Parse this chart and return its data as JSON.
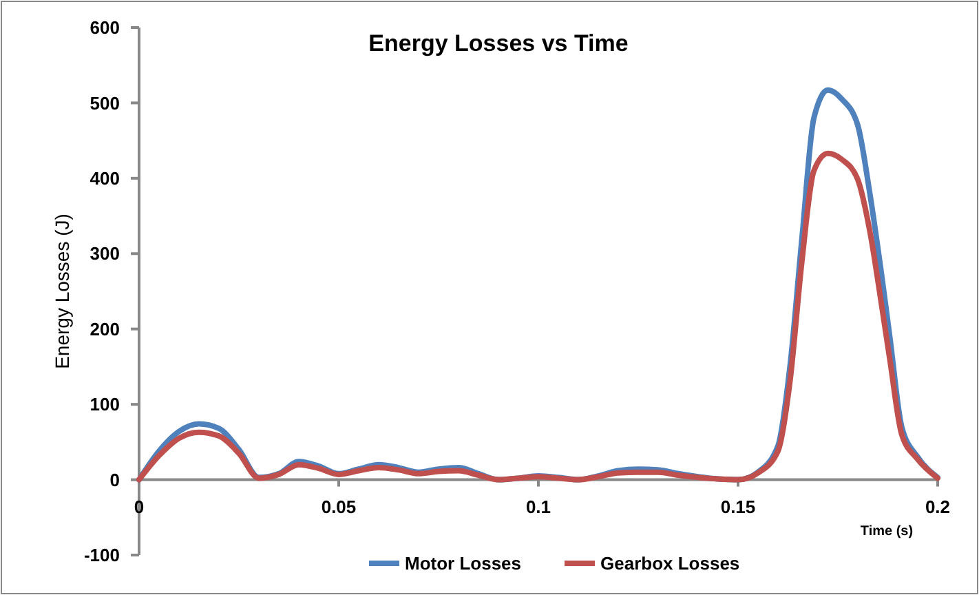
{
  "chart_data": {
    "type": "line",
    "title": "Energy Losses vs Time",
    "xlabel": "Time (s)",
    "ylabel": "Energy Losses (J)",
    "x": [
      0,
      0.005,
      0.01,
      0.015,
      0.02,
      0.025,
      0.03,
      0.035,
      0.04,
      0.045,
      0.05,
      0.055,
      0.06,
      0.065,
      0.07,
      0.075,
      0.08,
      0.085,
      0.09,
      0.095,
      0.1,
      0.105,
      0.11,
      0.115,
      0.12,
      0.125,
      0.13,
      0.135,
      0.14,
      0.145,
      0.15,
      0.155,
      0.16,
      0.163,
      0.166,
      0.169,
      0.1725,
      0.176,
      0.18,
      0.183,
      0.186,
      0.188,
      0.191,
      0.195,
      0.2
    ],
    "series": [
      {
        "name": "Motor Losses",
        "color": "#4f81bd",
        "values": [
          0,
          38,
          64,
          74,
          68,
          40,
          3,
          8,
          24,
          18,
          8,
          14,
          20,
          16,
          10,
          14,
          16,
          8,
          0,
          2,
          5,
          3,
          0,
          5,
          12,
          14,
          13,
          8,
          4,
          1,
          0,
          10,
          45,
          150,
          320,
          480,
          517,
          505,
          470,
          380,
          270,
          190,
          70,
          30,
          3
        ]
      },
      {
        "name": "Gearbox Losses",
        "color": "#c0504d",
        "values": [
          0,
          32,
          55,
          63,
          58,
          35,
          2,
          7,
          20,
          15,
          7,
          12,
          16,
          13,
          8,
          11,
          12,
          6,
          0,
          2,
          4,
          2,
          0,
          4,
          9,
          10,
          10,
          6,
          3,
          1,
          0,
          9,
          38,
          130,
          290,
          410,
          433,
          425,
          398,
          330,
          230,
          160,
          60,
          27,
          2
        ]
      }
    ],
    "xlim": [
      0,
      0.2
    ],
    "xticks": [
      0,
      0.05,
      0.1,
      0.15,
      0.2
    ],
    "ylim": [
      -100,
      600
    ],
    "yticks": [
      -100,
      0,
      100,
      200,
      300,
      400,
      500,
      600
    ],
    "grid": false,
    "legend": "bottom",
    "marker": "none",
    "line_style": "solid"
  }
}
